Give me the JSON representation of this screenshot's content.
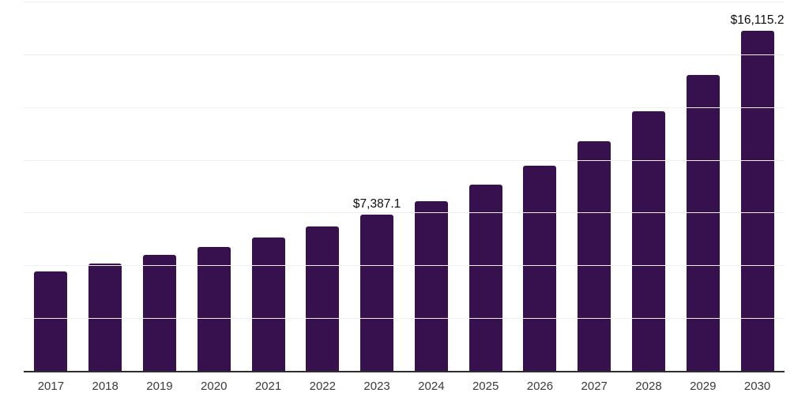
{
  "chart_data": {
    "type": "bar",
    "title": "",
    "xlabel": "",
    "ylabel": "",
    "categories": [
      "2017",
      "2018",
      "2019",
      "2020",
      "2021",
      "2022",
      "2023",
      "2024",
      "2025",
      "2026",
      "2027",
      "2028",
      "2029",
      "2030"
    ],
    "values": [
      4730,
      5070,
      5480,
      5890,
      6310,
      6830,
      7387.1,
      8030,
      8810,
      9710,
      10870,
      12290,
      14010,
      16115.2
    ],
    "point_labels": {
      "2023": "$7,387.1",
      "2030": "$16,115.2"
    },
    "ylim": [
      0,
      17500
    ],
    "grid_step": 2500,
    "grid": true,
    "legend_position": "none",
    "y_tick_labels_visible": false
  },
  "colors": {
    "bar": "#36114E",
    "gridline": "#efefef",
    "axis_line": "#2e2e2e",
    "x_tick_label": "#3a3a3a",
    "data_label": "#0d0d0d",
    "background": "#ffffff"
  }
}
